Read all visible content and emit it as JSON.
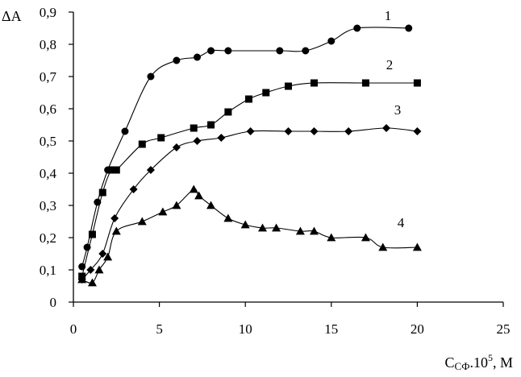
{
  "chart_data": {
    "type": "line",
    "title": "",
    "ylabel": "ΔA",
    "xlabel": {
      "base": "C",
      "subscript": "СФ",
      "middle": ".10",
      "superscript": "5",
      "suffix": ", M"
    },
    "xlim": [
      0,
      25
    ],
    "ylim": [
      0,
      0.9
    ],
    "xticks": [
      0,
      5,
      10,
      15,
      20,
      25
    ],
    "xtick_labels": [
      "0",
      "5",
      "10",
      "15",
      "20",
      "25"
    ],
    "yticks": [
      0,
      0.1,
      0.2,
      0.3,
      0.4,
      0.5,
      0.6,
      0.7,
      0.8,
      0.9
    ],
    "ytick_labels": [
      "0",
      "0,1",
      "0,2",
      "0,3",
      "0,4",
      "0,5",
      "0,6",
      "0,7",
      "0,8",
      "0,9"
    ],
    "grid": false,
    "colors": {
      "ink": "#000000",
      "background": "#ffffff"
    },
    "series": [
      {
        "label": "1",
        "marker": "circle",
        "x": [
          0.5,
          0.8,
          1.4,
          2.0,
          3.0,
          4.5,
          6.0,
          7.2,
          8.0,
          9.0,
          12.0,
          13.5,
          15.0,
          16.5,
          19.5
        ],
        "y": [
          0.11,
          0.17,
          0.31,
          0.41,
          0.53,
          0.7,
          0.75,
          0.76,
          0.78,
          0.78,
          0.78,
          0.78,
          0.81,
          0.85,
          0.85
        ]
      },
      {
        "label": "2",
        "marker": "square",
        "x": [
          0.5,
          1.1,
          1.7,
          2.2,
          2.5,
          4.0,
          5.1,
          7.0,
          8.0,
          9.0,
          10.2,
          11.2,
          12.5,
          14.0,
          17.0,
          20.0
        ],
        "y": [
          0.08,
          0.21,
          0.34,
          0.41,
          0.41,
          0.49,
          0.51,
          0.54,
          0.55,
          0.59,
          0.63,
          0.65,
          0.67,
          0.68,
          0.68,
          0.68
        ]
      },
      {
        "label": "3",
        "marker": "diamond",
        "x": [
          0.5,
          1.0,
          1.7,
          2.4,
          3.5,
          4.5,
          6.0,
          7.2,
          8.6,
          10.3,
          12.5,
          14.0,
          16.0,
          18.2,
          20.0
        ],
        "y": [
          0.07,
          0.1,
          0.15,
          0.26,
          0.35,
          0.41,
          0.48,
          0.5,
          0.51,
          0.53,
          0.53,
          0.53,
          0.53,
          0.54,
          0.53
        ]
      },
      {
        "label": "4",
        "marker": "triangle",
        "x": [
          0.5,
          1.1,
          1.5,
          2.0,
          2.5,
          4.0,
          5.2,
          6.0,
          7.0,
          7.3,
          8.0,
          9.0,
          10.0,
          11.0,
          11.8,
          13.2,
          14.0,
          15.0,
          17.0,
          18.0,
          20.0
        ],
        "y": [
          0.07,
          0.06,
          0.1,
          0.14,
          0.22,
          0.25,
          0.28,
          0.3,
          0.35,
          0.33,
          0.3,
          0.26,
          0.24,
          0.23,
          0.23,
          0.22,
          0.22,
          0.2,
          0.2,
          0.17,
          0.17
        ]
      }
    ]
  }
}
